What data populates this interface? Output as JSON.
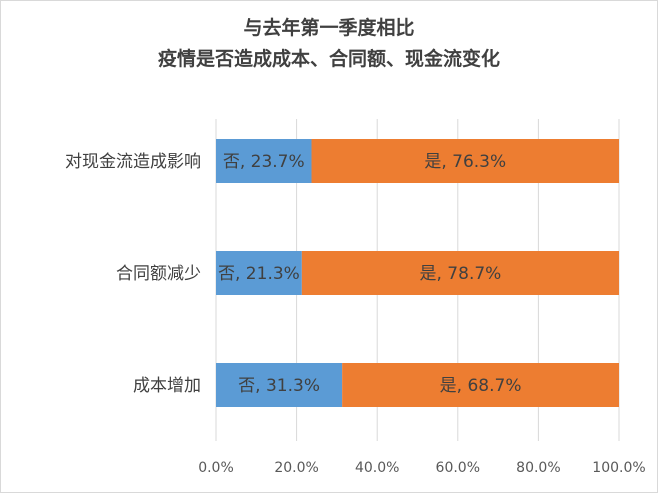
{
  "chart_data": {
    "type": "bar",
    "orientation": "horizontal",
    "stacked": true,
    "title": [
      "与去年第一季度相比",
      "疫情是否造成成本、合同额、现金流变化"
    ],
    "categories": [
      "对现金流造成影响",
      "合同额减少",
      "成本增加"
    ],
    "series": [
      {
        "name": "否",
        "values": [
          23.7,
          21.3,
          31.3
        ],
        "labels": [
          "否, 23.7%",
          "否, 21.3%",
          "否, 31.3%"
        ],
        "color": "#5b9bd5"
      },
      {
        "name": "是",
        "values": [
          76.3,
          78.7,
          68.7
        ],
        "labels": [
          "是, 76.3%",
          "是, 78.7%",
          "是, 68.7%"
        ],
        "color": "#ed7d31"
      }
    ],
    "xlim": [
      0,
      100
    ],
    "x_ticks": [
      "0.0%",
      "20.0%",
      "40.0%",
      "60.0%",
      "80.0%",
      "100.0%"
    ],
    "grid": "vertical",
    "legend": "none"
  }
}
